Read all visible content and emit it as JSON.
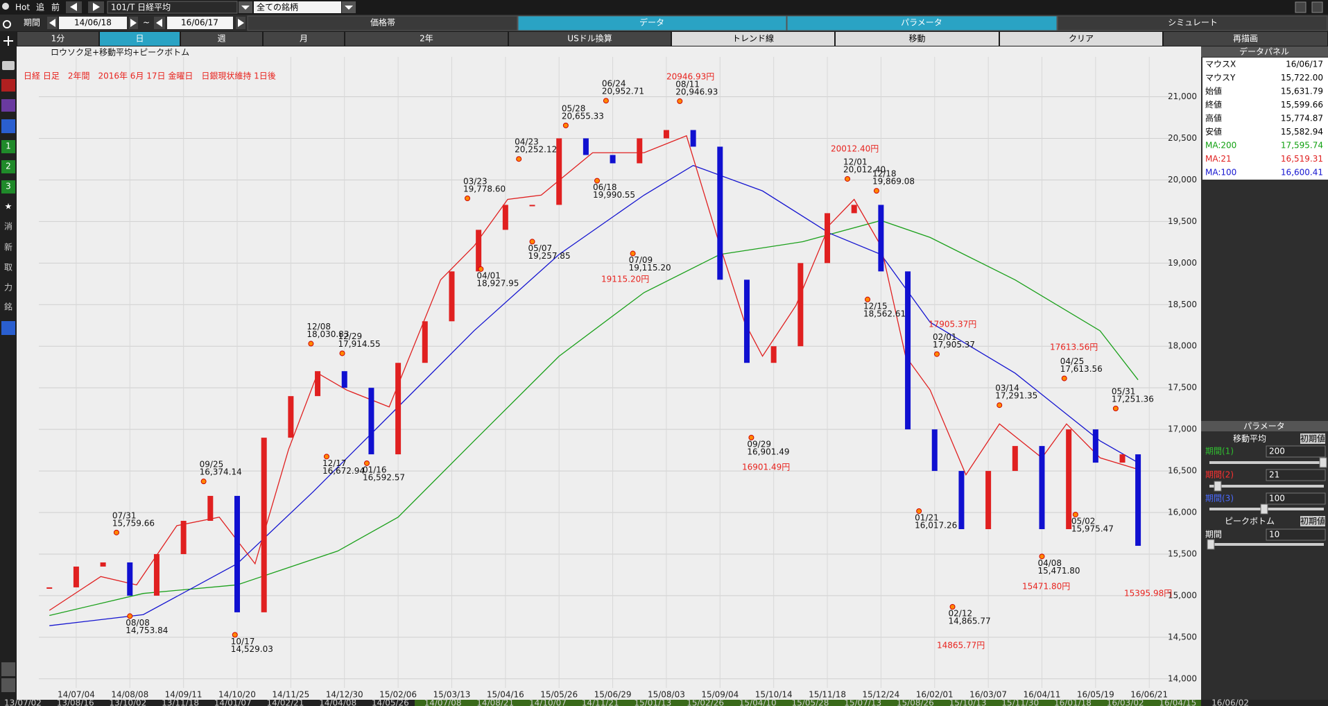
{
  "toolbar": {
    "buttons": [
      "Hot",
      "追",
      "前"
    ],
    "symbol": "101/T 日経平均",
    "universe": "全ての銘柄"
  },
  "period": {
    "label": "期間",
    "from": "14/06/18",
    "sep": "~",
    "to": "16/06/17"
  },
  "tabs": [
    "価格帯",
    "データ",
    "パラメータ",
    "シミュレート"
  ],
  "buttons": [
    "1分",
    "日",
    "週",
    "月",
    "2年",
    "USドル換算",
    "トレンド線",
    "移動",
    "クリア",
    "再描画"
  ],
  "sidebar": [
    "1",
    "2",
    "3",
    "★",
    "消",
    "新",
    "取",
    "力",
    "銘"
  ],
  "data_panel": {
    "title": "データパネル",
    "rows": [
      [
        "マウスX",
        "16/06/17"
      ],
      [
        "マウスY",
        "15,722.00"
      ],
      [
        "始値",
        "15,631.79"
      ],
      [
        "終値",
        "15,599.66"
      ],
      [
        "高値",
        "15,774.87"
      ],
      [
        "安値",
        "15,582.94"
      ],
      [
        "MA:200",
        "17,595.74"
      ],
      [
        "MA:21",
        "16,519.31"
      ],
      [
        "MA:100",
        "16,600.41"
      ]
    ]
  },
  "param_panel": {
    "title": "パラメータ",
    "ma": {
      "title": "移動平均",
      "reset": "初期値",
      "rows": [
        [
          "期間(1)",
          "200"
        ],
        [
          "期間(2)",
          "21"
        ],
        [
          "期間(3)",
          "100"
        ]
      ]
    },
    "peak": {
      "title": "ピークボトム",
      "reset": "初期値",
      "rows": [
        [
          "期間",
          "10"
        ]
      ]
    }
  },
  "scroller": [
    "13/07/02",
    "13/08/16",
    "13/10/02",
    "13/11/18",
    "14/01/07",
    "14/02/21",
    "14/04/08",
    "14/05/26",
    "14/07/08",
    "14/08/21",
    "14/10/07",
    "14/11/21",
    "15/01/13",
    "15/02/26",
    "15/04/10",
    "15/05/28",
    "15/07/13",
    "15/08/26",
    "15/10/13",
    "15/11/30",
    "16/01/18",
    "16/03/02",
    "16/04/15",
    "16/06/02"
  ],
  "chart_data": {
    "type": "candlestick",
    "title": "日経 日足　2年間　2016年 6月 17日 金曜日　日銀現状維持 1日後",
    "subtitle": "ロウソク足+移動平均+ピークボトム",
    "up_color": "#e02020",
    "down_color": "#1010d0",
    "grid": true,
    "xlim": [
      -1,
      500
    ],
    "ylim": [
      13890,
      21480
    ],
    "xticks": [
      {
        "value": 12,
        "label": "14/07/04"
      },
      {
        "value": 36,
        "label": "14/08/08"
      },
      {
        "value": 60,
        "label": "14/09/11"
      },
      {
        "value": 84,
        "label": "14/10/20"
      },
      {
        "value": 108,
        "label": "14/11/25"
      },
      {
        "value": 132,
        "label": "14/12/30"
      },
      {
        "value": 156,
        "label": "15/02/06"
      },
      {
        "value": 180,
        "label": "15/03/13"
      },
      {
        "value": 204,
        "label": "15/04/16"
      },
      {
        "value": 228,
        "label": "15/05/26"
      },
      {
        "value": 252,
        "label": "15/06/29"
      },
      {
        "value": 276,
        "label": "15/08/03"
      },
      {
        "value": 300,
        "label": "15/09/04"
      },
      {
        "value": 324,
        "label": "15/10/14"
      },
      {
        "value": 348,
        "label": "15/11/18"
      },
      {
        "value": 372,
        "label": "15/12/24"
      },
      {
        "value": 396,
        "label": "16/02/01"
      },
      {
        "value": 420,
        "label": "16/03/07"
      },
      {
        "value": 444,
        "label": "16/04/11"
      },
      {
        "value": 468,
        "label": "16/05/19"
      },
      {
        "value": 492,
        "label": "16/06/21"
      }
    ],
    "yticks": [
      {
        "value": 14000,
        "label": "14,000"
      },
      {
        "value": 14500,
        "label": "14,500"
      },
      {
        "value": 15000,
        "label": "15,000"
      },
      {
        "value": 15500,
        "label": "15,500"
      },
      {
        "value": 16000,
        "label": "16,000"
      },
      {
        "value": 16500,
        "label": "16,500"
      },
      {
        "value": 17000,
        "label": "17,000"
      },
      {
        "value": 17500,
        "label": "17,500"
      },
      {
        "value": 18000,
        "label": "18,000"
      },
      {
        "value": 18500,
        "label": "18,500"
      },
      {
        "value": 19000,
        "label": "19,000"
      },
      {
        "value": 19500,
        "label": "19,500"
      },
      {
        "value": 20000,
        "label": "20,000"
      },
      {
        "value": 20500,
        "label": "20,500"
      },
      {
        "value": 21000,
        "label": "21,000"
      }
    ],
    "x": [
      0,
      12,
      24,
      36,
      48,
      60,
      72,
      84,
      96,
      108,
      120,
      132,
      144,
      156,
      168,
      180,
      192,
      204,
      216,
      228,
      240,
      252,
      264,
      276,
      288,
      300,
      312,
      324,
      336,
      348,
      360,
      372,
      384,
      396,
      408,
      420,
      432,
      444,
      456,
      468,
      480,
      487
    ],
    "values": [
      15100,
      15350,
      15400,
      15000,
      15500,
      15900,
      16200,
      14800,
      16900,
      17400,
      17700,
      17500,
      16700,
      17800,
      18300,
      18900,
      19400,
      19700,
      19700,
      20500,
      20300,
      20200,
      20500,
      20600,
      20400,
      18800,
      17800,
      18000,
      19000,
      19600,
      19700,
      18900,
      17000,
      16500,
      15800,
      16500,
      16800,
      15800,
      17000,
      16600,
      16700,
      15599.66
    ],
    "moving_averages": [
      {
        "color": "#1aa01a",
        "x": [
          0,
          42,
          84,
          129,
          156,
          190,
          228,
          266,
          300,
          337,
          372,
          394,
          432,
          470,
          487
        ],
        "values": [
          14762,
          15027,
          15130,
          15537,
          15944,
          16862,
          17880,
          18645,
          19104,
          19257,
          19512,
          19308,
          18798,
          18186,
          17595.74
        ]
      },
      {
        "color": "#1515d0",
        "x": [
          0,
          42,
          84,
          118,
          156,
          190,
          228,
          266,
          288,
          319,
          349,
          372,
          394,
          432,
          470,
          487
        ],
        "values": [
          14639,
          14772,
          15384,
          16250,
          17270,
          18187,
          19104,
          19817,
          20174,
          19868,
          19359,
          19104,
          18288,
          17676,
          16862,
          16600.41
        ]
      },
      {
        "color": "#e02020",
        "x": [
          0,
          23,
          39,
          57,
          76,
          92,
          107,
          120,
          133,
          152,
          175,
          190,
          205,
          220,
          243,
          266,
          285,
          300,
          311,
          319,
          334,
          349,
          360,
          372,
          383,
          394,
          410,
          425,
          444,
          455,
          470,
          487
        ],
        "values": [
          14823,
          15230,
          15130,
          15842,
          15944,
          15384,
          16760,
          17676,
          17473,
          17270,
          18798,
          19206,
          19766,
          19817,
          20327,
          20327,
          20531,
          19206,
          18288,
          17880,
          18492,
          19460,
          19766,
          19206,
          17880,
          17473,
          16454,
          17066,
          16658,
          17066,
          16658,
          16519.31
        ]
      }
    ],
    "peaks": [
      {
        "kind": "peak",
        "x": 30,
        "value": 15759.66,
        "date": "07/31",
        "label": "15,759.66"
      },
      {
        "kind": "bottom",
        "x": 36,
        "value": 14753.84,
        "date": "08/08",
        "label": "14,753.84"
      },
      {
        "kind": "peak",
        "x": 69,
        "value": 16374.14,
        "date": "09/25",
        "label": "16,374.14"
      },
      {
        "kind": "bottom",
        "x": 83,
        "value": 14529.03,
        "date": "10/17",
        "label": "14,529.03"
      },
      {
        "kind": "peak",
        "x": 117,
        "value": 18030.83,
        "date": "12/08",
        "label": "18,030.83"
      },
      {
        "kind": "bottom",
        "x": 124,
        "value": 16672.94,
        "date": "12/17",
        "label": "16,672.94"
      },
      {
        "kind": "peak",
        "x": 131,
        "value": 17914.55,
        "date": "12/29",
        "label": "17,914.55"
      },
      {
        "kind": "bottom",
        "x": 142,
        "value": 16592.57,
        "date": "01/16",
        "label": "16,592.57"
      },
      {
        "kind": "peak",
        "x": 187,
        "value": 19778.6,
        "date": "03/23",
        "label": "19,778.60"
      },
      {
        "kind": "bottom",
        "x": 193,
        "value": 18927.95,
        "date": "04/01",
        "label": "18,927.95"
      },
      {
        "kind": "peak",
        "x": 210,
        "value": 20252.12,
        "date": "04/23",
        "label": "20,252.12"
      },
      {
        "kind": "bottom",
        "x": 216,
        "value": 19257.85,
        "date": "05/07",
        "label": "19,257.85"
      },
      {
        "kind": "peak",
        "x": 231,
        "value": 20655.33,
        "date": "05/28",
        "label": "20,655.33"
      },
      {
        "kind": "bottom",
        "x": 245,
        "value": 19990.55,
        "date": "06/18",
        "label": "19,990.55"
      },
      {
        "kind": "peak",
        "x": 249,
        "value": 20952.71,
        "date": "06/24",
        "label": "20,952.71"
      },
      {
        "kind": "bottom",
        "x": 261,
        "value": 19115.2,
        "date": "07/09",
        "label": "19,115.20"
      },
      {
        "kind": "peak",
        "x": 282,
        "value": 20946.93,
        "date": "08/11",
        "label": "20,946.93"
      },
      {
        "kind": "bottom",
        "x": 314,
        "value": 16901.49,
        "date": "09/29",
        "label": "16,901.49"
      },
      {
        "kind": "peak",
        "x": 357,
        "value": 20012.4,
        "date": "12/01",
        "label": "20,012.40"
      },
      {
        "kind": "bottom",
        "x": 366,
        "value": 18562.61,
        "date": "12/15",
        "label": "18,562.61"
      },
      {
        "kind": "peak",
        "x": 370,
        "value": 19869.08,
        "date": "12/18",
        "label": "19,869.08"
      },
      {
        "kind": "bottom",
        "x": 389,
        "value": 16017.26,
        "date": "01/21",
        "label": "16,017.26"
      },
      {
        "kind": "peak",
        "x": 397,
        "value": 17905.37,
        "date": "02/01",
        "label": "17,905.37"
      },
      {
        "kind": "bottom",
        "x": 404,
        "value": 14865.77,
        "date": "02/12",
        "label": "14,865.77"
      },
      {
        "kind": "peak",
        "x": 425,
        "value": 17291.35,
        "date": "03/14",
        "label": "17,291.35"
      },
      {
        "kind": "bottom",
        "x": 444,
        "value": 15471.8,
        "date": "04/08",
        "label": "15,471.80"
      },
      {
        "kind": "peak",
        "x": 454,
        "value": 17613.56,
        "date": "04/25",
        "label": "17,613.56"
      },
      {
        "kind": "bottom",
        "x": 459,
        "value": 15975.47,
        "date": "05/02",
        "label": "15,975.47"
      },
      {
        "kind": "peak",
        "x": 477,
        "value": 17251.36,
        "date": "05/31",
        "label": "17,251.36"
      }
    ],
    "annotations": [
      "20946.93円",
      "19115.20円",
      "20012.40円",
      "16901.49円",
      "17905.37円",
      "17613.56円",
      "14865.77円",
      "15471.80円",
      "15395.98円"
    ]
  }
}
